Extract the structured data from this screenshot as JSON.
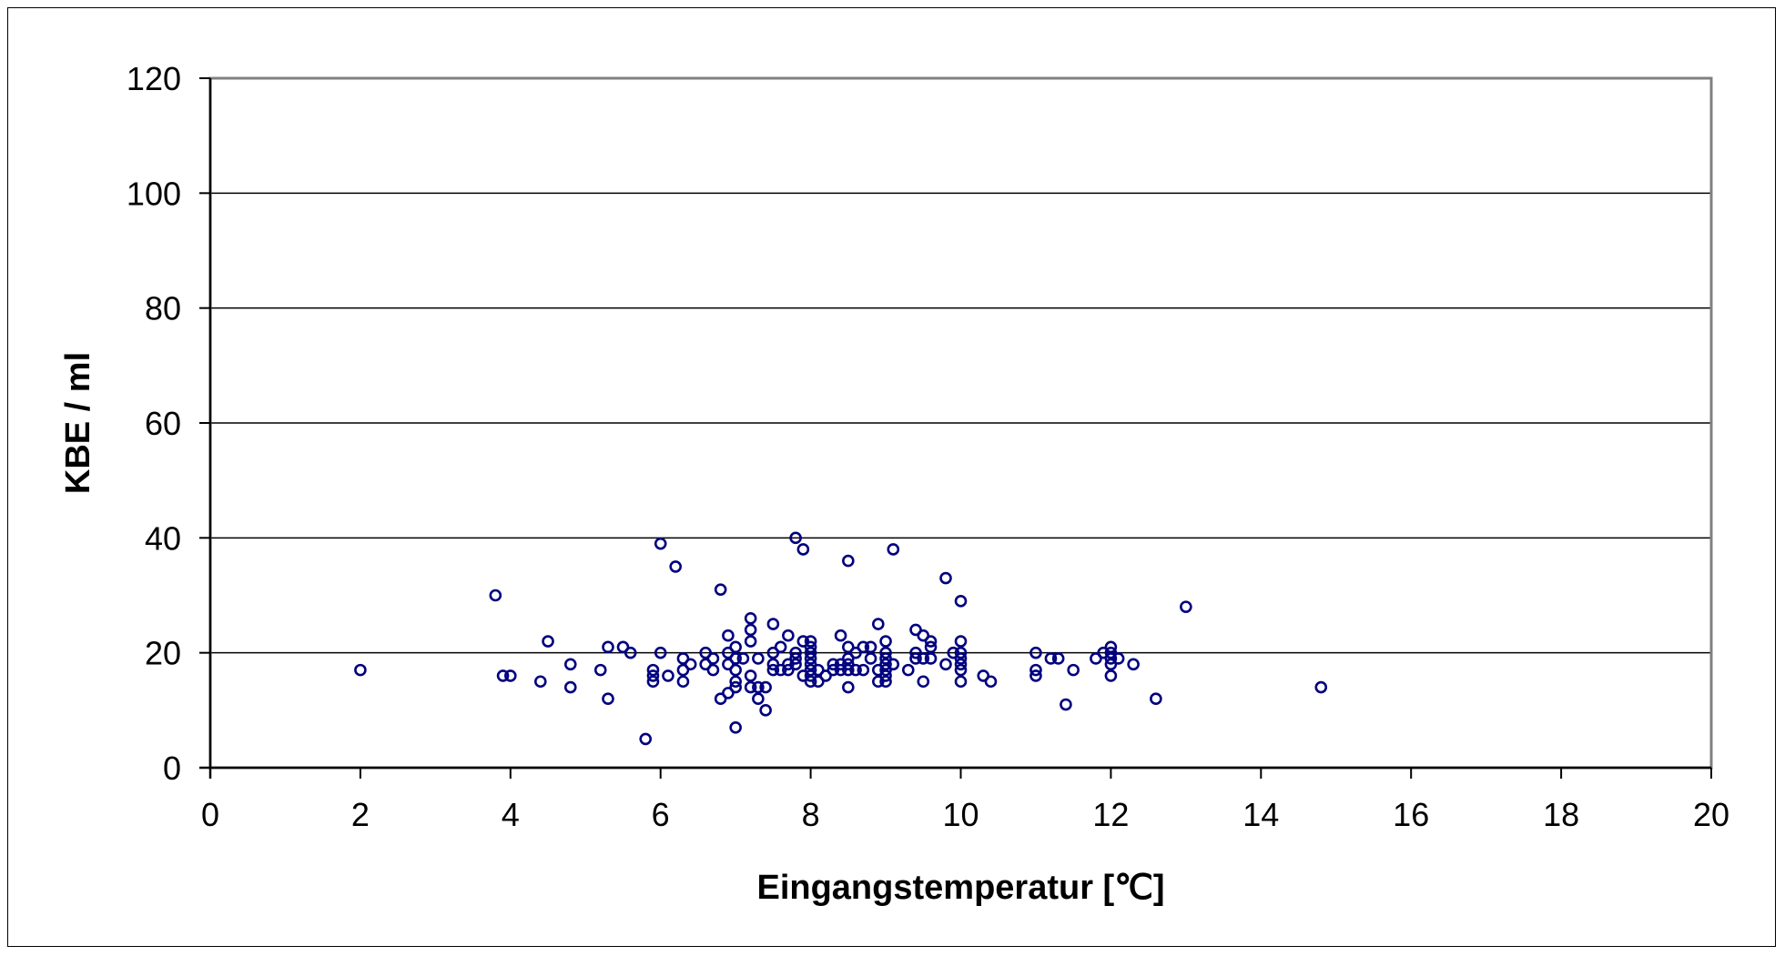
{
  "chart_data": {
    "type": "scatter",
    "xlabel": "Eingangstemperatur [℃]",
    "ylabel": "KBE / ml",
    "xlim": [
      0,
      20
    ],
    "ylim": [
      0,
      120
    ],
    "x_ticks": [
      "0",
      "2",
      "4",
      "6",
      "8",
      "10",
      "12",
      "14",
      "16",
      "18",
      "20"
    ],
    "y_ticks": [
      "0",
      "20",
      "40",
      "60",
      "80",
      "100",
      "120"
    ],
    "grid": "horizontal",
    "legend": "none",
    "marker": "open-circle",
    "colors": {
      "marker": "#000080",
      "grid": "#000000",
      "axis": "#808080",
      "plot_bg": "#ffffff"
    },
    "points": [
      [
        2.0,
        17
      ],
      [
        3.8,
        30
      ],
      [
        3.9,
        16
      ],
      [
        4.0,
        16
      ],
      [
        4.4,
        15
      ],
      [
        4.5,
        22
      ],
      [
        4.8,
        18
      ],
      [
        4.8,
        14
      ],
      [
        5.2,
        17
      ],
      [
        5.3,
        21
      ],
      [
        5.3,
        12
      ],
      [
        5.5,
        21
      ],
      [
        5.6,
        20
      ],
      [
        5.8,
        5
      ],
      [
        5.9,
        17
      ],
      [
        5.9,
        16
      ],
      [
        5.9,
        15
      ],
      [
        6.0,
        39
      ],
      [
        6.0,
        20
      ],
      [
        6.1,
        16
      ],
      [
        6.2,
        35
      ],
      [
        6.3,
        19
      ],
      [
        6.3,
        17
      ],
      [
        6.3,
        15
      ],
      [
        6.4,
        18
      ],
      [
        6.6,
        20
      ],
      [
        6.6,
        18
      ],
      [
        6.7,
        19
      ],
      [
        6.7,
        17
      ],
      [
        6.8,
        31
      ],
      [
        6.8,
        12
      ],
      [
        6.9,
        23
      ],
      [
        6.9,
        20
      ],
      [
        6.9,
        18
      ],
      [
        6.9,
        13
      ],
      [
        7.0,
        21
      ],
      [
        7.0,
        19
      ],
      [
        7.0,
        17
      ],
      [
        7.0,
        15
      ],
      [
        7.0,
        14
      ],
      [
        7.0,
        7
      ],
      [
        7.1,
        19
      ],
      [
        7.2,
        26
      ],
      [
        7.2,
        24
      ],
      [
        7.2,
        22
      ],
      [
        7.2,
        16
      ],
      [
        7.2,
        14
      ],
      [
        7.3,
        19
      ],
      [
        7.3,
        14
      ],
      [
        7.3,
        12
      ],
      [
        7.4,
        14
      ],
      [
        7.4,
        10
      ],
      [
        7.5,
        25
      ],
      [
        7.5,
        20
      ],
      [
        7.5,
        18
      ],
      [
        7.5,
        17
      ],
      [
        7.6,
        21
      ],
      [
        7.6,
        17
      ],
      [
        7.7,
        23
      ],
      [
        7.7,
        18
      ],
      [
        7.7,
        17
      ],
      [
        7.8,
        40
      ],
      [
        7.8,
        20
      ],
      [
        7.8,
        19
      ],
      [
        7.8,
        18
      ],
      [
        7.9,
        38
      ],
      [
        7.9,
        22
      ],
      [
        7.9,
        16
      ],
      [
        8.0,
        22
      ],
      [
        8.0,
        21
      ],
      [
        8.0,
        20
      ],
      [
        8.0,
        19
      ],
      [
        8.0,
        18
      ],
      [
        8.0,
        17
      ],
      [
        8.0,
        16
      ],
      [
        8.0,
        15
      ],
      [
        8.1,
        17
      ],
      [
        8.1,
        15
      ],
      [
        8.2,
        16
      ],
      [
        8.3,
        18
      ],
      [
        8.3,
        17
      ],
      [
        8.4,
        23
      ],
      [
        8.4,
        18
      ],
      [
        8.4,
        17
      ],
      [
        8.5,
        36
      ],
      [
        8.5,
        21
      ],
      [
        8.5,
        19
      ],
      [
        8.5,
        18
      ],
      [
        8.5,
        17
      ],
      [
        8.5,
        14
      ],
      [
        8.6,
        20
      ],
      [
        8.6,
        17
      ],
      [
        8.7,
        21
      ],
      [
        8.7,
        17
      ],
      [
        8.8,
        21
      ],
      [
        8.8,
        19
      ],
      [
        8.9,
        25
      ],
      [
        8.9,
        17
      ],
      [
        8.9,
        15
      ],
      [
        9.0,
        22
      ],
      [
        9.0,
        20
      ],
      [
        9.0,
        19
      ],
      [
        9.0,
        18
      ],
      [
        9.0,
        17
      ],
      [
        9.0,
        16
      ],
      [
        9.0,
        15
      ],
      [
        9.1,
        38
      ],
      [
        9.1,
        18
      ],
      [
        9.3,
        17
      ],
      [
        9.4,
        24
      ],
      [
        9.4,
        20
      ],
      [
        9.4,
        19
      ],
      [
        9.5,
        23
      ],
      [
        9.5,
        19
      ],
      [
        9.5,
        15
      ],
      [
        9.6,
        22
      ],
      [
        9.6,
        21
      ],
      [
        9.6,
        19
      ],
      [
        9.8,
        33
      ],
      [
        9.8,
        18
      ],
      [
        9.9,
        20
      ],
      [
        10.0,
        29
      ],
      [
        10.0,
        22
      ],
      [
        10.0,
        20
      ],
      [
        10.0,
        19
      ],
      [
        10.0,
        18
      ],
      [
        10.0,
        17
      ],
      [
        10.0,
        15
      ],
      [
        10.3,
        16
      ],
      [
        10.4,
        15
      ],
      [
        11.0,
        20
      ],
      [
        11.0,
        17
      ],
      [
        11.0,
        16
      ],
      [
        11.2,
        19
      ],
      [
        11.3,
        19
      ],
      [
        11.4,
        11
      ],
      [
        11.5,
        17
      ],
      [
        11.8,
        19
      ],
      [
        11.9,
        20
      ],
      [
        12.0,
        21
      ],
      [
        12.0,
        20
      ],
      [
        12.0,
        19
      ],
      [
        12.0,
        18
      ],
      [
        12.0,
        16
      ],
      [
        12.1,
        19
      ],
      [
        12.3,
        18
      ],
      [
        12.6,
        12
      ],
      [
        13.0,
        28
      ],
      [
        14.8,
        14
      ]
    ]
  }
}
